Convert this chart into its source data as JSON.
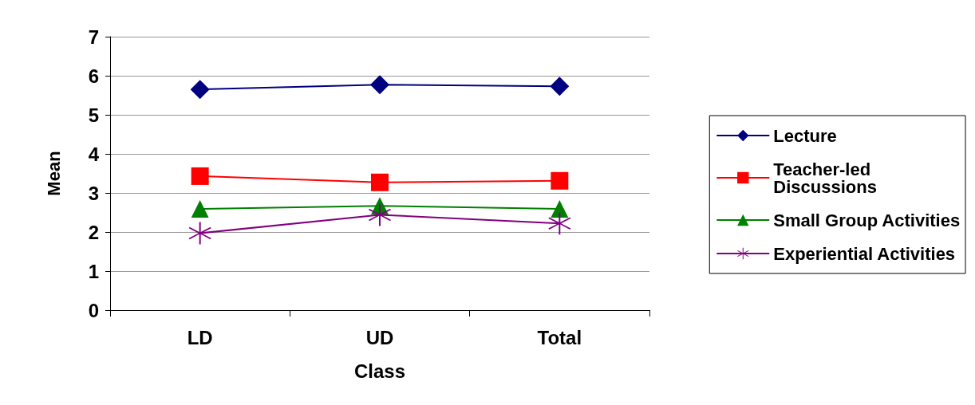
{
  "chart_data": {
    "type": "line",
    "xlabel": "Class",
    "ylabel": "Mean",
    "categories": [
      "LD",
      "UD",
      "Total"
    ],
    "series": [
      {
        "name": "Lecture",
        "color": "#000080",
        "marker": "diamond",
        "values": [
          5.65,
          5.77,
          5.73
        ]
      },
      {
        "name": "Teacher-led Discussions",
        "color": "#ff0000",
        "marker": "square",
        "values": [
          3.43,
          3.27,
          3.31
        ]
      },
      {
        "name": "Small Group Activities",
        "color": "#008000",
        "marker": "triangle",
        "values": [
          2.59,
          2.67,
          2.59
        ]
      },
      {
        "name": "Experiential Activities",
        "color": "#800080",
        "marker": "cross",
        "values": [
          1.97,
          2.44,
          2.22
        ]
      }
    ],
    "ylim": [
      0,
      7
    ],
    "yticks": [
      0,
      1,
      2,
      3,
      4,
      5,
      6,
      7
    ],
    "grid": "y",
    "legend": "right",
    "line_style": "solid"
  }
}
